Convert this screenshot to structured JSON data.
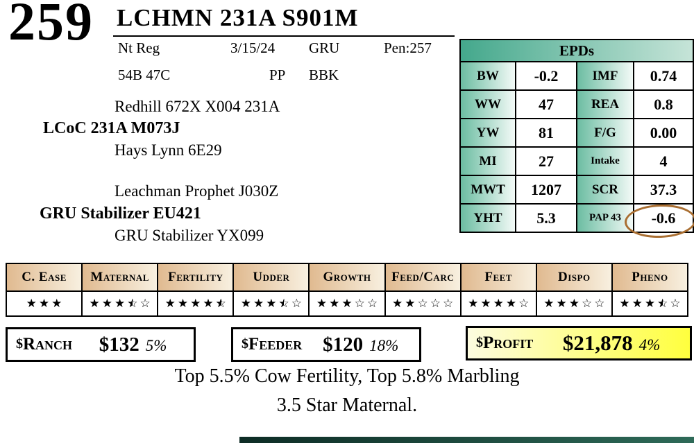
{
  "lot": {
    "number": "259",
    "title": "LCHMN 231A S901M",
    "reg": "Nt Reg",
    "date": "3/15/24",
    "breeder": "GRU",
    "pen": "Pen:257",
    "tattoo": "54B 47C",
    "polled": "PP",
    "color_code": "BBK"
  },
  "pedigree": {
    "sire_grandsire": "Redhill 672X X004 231A",
    "sire": "LCoC 231A M073J",
    "sire_granddam": "Hays Lynn 6E29",
    "dam_grandsire": "Leachman Prophet J030Z",
    "dam": "GRU Stabilizer EU421",
    "dam_granddam": "GRU Stabilizer YX099"
  },
  "epds": {
    "title": "EPDs",
    "rows": [
      {
        "label1": "BW",
        "value1": "-0.2",
        "label2": "IMF",
        "value2": "0.74"
      },
      {
        "label1": "WW",
        "value1": "47",
        "label2": "REA",
        "value2": "0.8"
      },
      {
        "label1": "YW",
        "value1": "81",
        "label2": "F/G",
        "value2": "0.00"
      },
      {
        "label1": "MI",
        "value1": "27",
        "label2": "Intake",
        "value2": "4"
      },
      {
        "label1": "MWT",
        "value1": "1207",
        "label2": "SCR",
        "value2": "37.3"
      },
      {
        "label1": "YHT",
        "value1": "5.3",
        "label2": "PAP 43",
        "value2": "-0.6",
        "circled": true
      }
    ]
  },
  "ratings": {
    "columns": [
      {
        "label": "C. Ease",
        "stars": 3,
        "max": 3
      },
      {
        "label": "Maternal",
        "stars": 3.5,
        "max": 5
      },
      {
        "label": "Fertility",
        "stars": 4.5,
        "max": 5
      },
      {
        "label": "Udder",
        "stars": 3.5,
        "max": 5
      },
      {
        "label": "Growth",
        "stars": 3,
        "max": 5
      },
      {
        "label": "Feed/Carc",
        "stars": 2,
        "max": 5
      },
      {
        "label": "Feet",
        "stars": 4,
        "max": 5
      },
      {
        "label": "Dispo",
        "stars": 3,
        "max": 5
      },
      {
        "label": "Pheno",
        "stars": 3.5,
        "max": 5
      }
    ]
  },
  "indexes": [
    {
      "prefix": "$",
      "name": "Ranch",
      "value": "$132",
      "pct": "5%"
    },
    {
      "prefix": "$",
      "name": "Feeder",
      "value": "$120",
      "pct": "18%"
    },
    {
      "prefix": "$",
      "name": "Profit",
      "value": "$21,878",
      "pct": "4%"
    }
  ],
  "footnotes": {
    "line1": "Top 5.5% Cow Fertility, Top 5.8% Marbling",
    "line2": "3.5 Star Maternal."
  },
  "colors": {
    "epd_header_teal": "#44a88c",
    "epd_label_teal": "#6cbda2",
    "rating_header_tan": "#e0ba90",
    "profit_yellow": "#ffff3e",
    "circle_brown": "#a96e31"
  }
}
